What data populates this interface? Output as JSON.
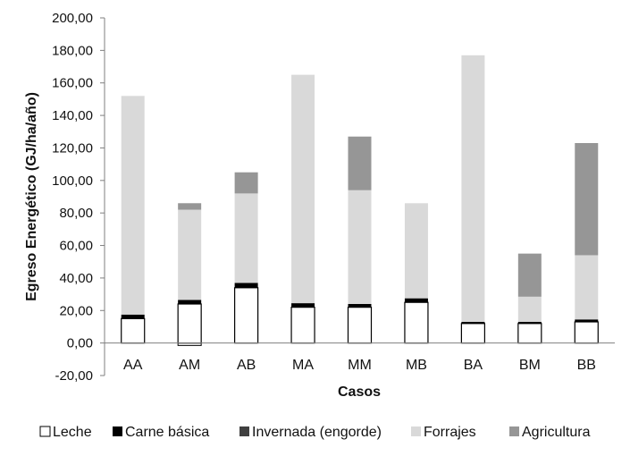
{
  "chart_data": {
    "type": "bar",
    "stacked": true,
    "xlabel": "Casos",
    "ylabel": "Egreso Energético (GJ/ha/año)",
    "ylim": [
      -20,
      200
    ],
    "y_tick_step": 20,
    "y_tick_labels": [
      "-20,00",
      "0,00",
      "20,00",
      "40,00",
      "60,00",
      "80,00",
      "100,00",
      "120,00",
      "140,00",
      "160,00",
      "180,00",
      "200,00"
    ],
    "categories": [
      "AA",
      "AM",
      "AB",
      "MA",
      "MM",
      "MB",
      "BA",
      "BM",
      "BB"
    ],
    "series": [
      {
        "name": "Leche",
        "color": "#ffffff",
        "values": [
          15,
          24,
          34,
          22,
          22,
          25,
          12,
          12,
          13
        ]
      },
      {
        "name": "Carne básica",
        "color": "#000000",
        "values": [
          2.5,
          2.5,
          3,
          2.5,
          2,
          2.5,
          1,
          1,
          1.5
        ]
      },
      {
        "name": "Invernada (engorde)",
        "color": "#404040",
        "values": [
          0,
          0,
          0,
          0,
          0,
          0,
          0,
          0,
          0
        ]
      },
      {
        "name": "Forrajes",
        "color": "#d9d9d9",
        "values": [
          134.5,
          55.5,
          55,
          140.5,
          70,
          58.5,
          164,
          15.5,
          39.5
        ]
      },
      {
        "name": "Agricultura",
        "color": "#969696",
        "values": [
          0,
          4,
          13,
          0,
          33,
          0,
          0,
          26.5,
          69
        ]
      }
    ],
    "negative_values": [
      0,
      -1.5,
      0,
      0,
      0,
      0,
      0,
      0,
      0
    ],
    "grid": false,
    "legend_position": "bottom"
  }
}
